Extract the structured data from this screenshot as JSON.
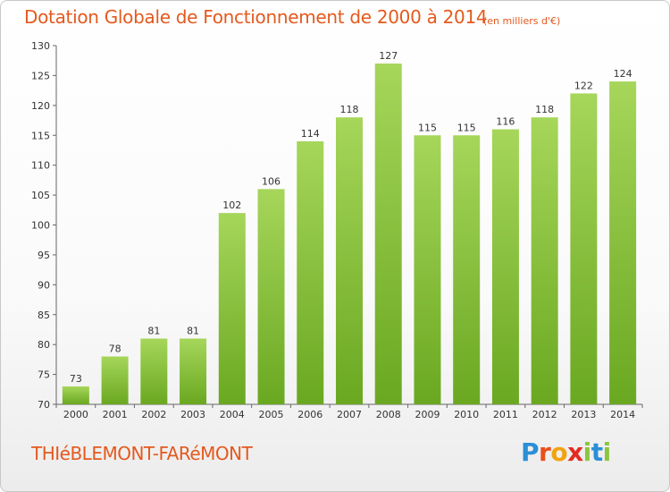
{
  "header": {
    "title": "Dotation Globale de Fonctionnement de 2000 à 2014",
    "subtitle": "(en milliers d'€)"
  },
  "footer": {
    "commune": "THIéBLEMONT-FARéMONT",
    "logo": "Proxiti"
  },
  "colors": {
    "bar_light": "#a6d65a",
    "bar_dark": "#6aa821",
    "title": "#e4591e",
    "text": "#333333"
  },
  "chart_data": {
    "type": "bar",
    "categories": [
      "2000",
      "2001",
      "2002",
      "2003",
      "2004",
      "2005",
      "2006",
      "2007",
      "2008",
      "2009",
      "2010",
      "2011",
      "2012",
      "2013",
      "2014"
    ],
    "values": [
      73,
      78,
      81,
      81,
      102,
      106,
      114,
      118,
      127,
      115,
      115,
      116,
      118,
      122,
      124
    ],
    "ylim": [
      70,
      130
    ],
    "yticks": [
      70,
      75,
      80,
      85,
      90,
      95,
      100,
      105,
      110,
      115,
      120,
      125,
      130
    ],
    "title": "Dotation Globale de Fonctionnement de 2000 à 2014",
    "xlabel": "",
    "ylabel": "",
    "grid": false,
    "data_labels": true
  }
}
